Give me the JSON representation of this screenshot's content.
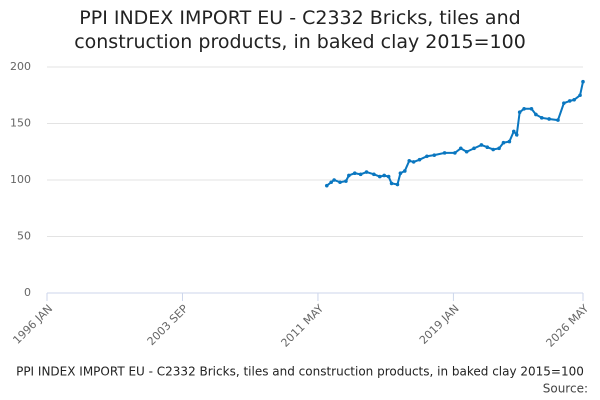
{
  "chart_data": {
    "type": "line",
    "title": "PPI INDEX IMPORT EU - C2332 Bricks, tiles and construction products, in baked clay 2015=100",
    "caption": "PPI INDEX IMPORT EU - C2332 Bricks, tiles and construction products, in baked clay 2015=100",
    "source": "Source:",
    "x": [
      "2011-11",
      "2012-02",
      "2012-04",
      "2012-08",
      "2012-12",
      "2013-02",
      "2013-06",
      "2013-10",
      "2014-02",
      "2014-07",
      "2014-11",
      "2015-02",
      "2015-05",
      "2015-07",
      "2015-11",
      "2016-01",
      "2016-04",
      "2016-07",
      "2016-10",
      "2017-02",
      "2017-07",
      "2017-12",
      "2018-07",
      "2019-02",
      "2019-06",
      "2019-10",
      "2020-03",
      "2020-08",
      "2020-12",
      "2021-04",
      "2021-08",
      "2021-11",
      "2022-03",
      "2022-06",
      "2022-08",
      "2022-10",
      "2023-01",
      "2023-06",
      "2023-09",
      "2024-01",
      "2024-06",
      "2024-12",
      "2025-04",
      "2025-08",
      "2025-11",
      "2026-03",
      "2026-05"
    ],
    "series": [
      {
        "color": "#0a77c0",
        "values": [
          95,
          98,
          100,
          98,
          99,
          104,
          106,
          105,
          107,
          105,
          103,
          104,
          103,
          97,
          96,
          106,
          108,
          117,
          116,
          118,
          121,
          122,
          124,
          124,
          128,
          125,
          128,
          131,
          129,
          127,
          128,
          133,
          134,
          143,
          140,
          160,
          163,
          163,
          158,
          155,
          154,
          153,
          168,
          170,
          171,
          175,
          187
        ]
      }
    ],
    "xlim": [
      "1996-01",
      "2026-05"
    ],
    "xticks": [
      {
        "value": "1996-01",
        "label": "1996 JAN"
      },
      {
        "value": "2003-09",
        "label": "2003 SEP"
      },
      {
        "value": "2011-05",
        "label": "2011 MAY"
      },
      {
        "value": "2019-01",
        "label": "2019 JAN"
      },
      {
        "value": "2026-05",
        "label": "2026 MAY"
      }
    ],
    "ylim": [
      0,
      200
    ],
    "yticks": [
      0,
      50,
      100,
      150,
      200
    ],
    "grid": true
  }
}
